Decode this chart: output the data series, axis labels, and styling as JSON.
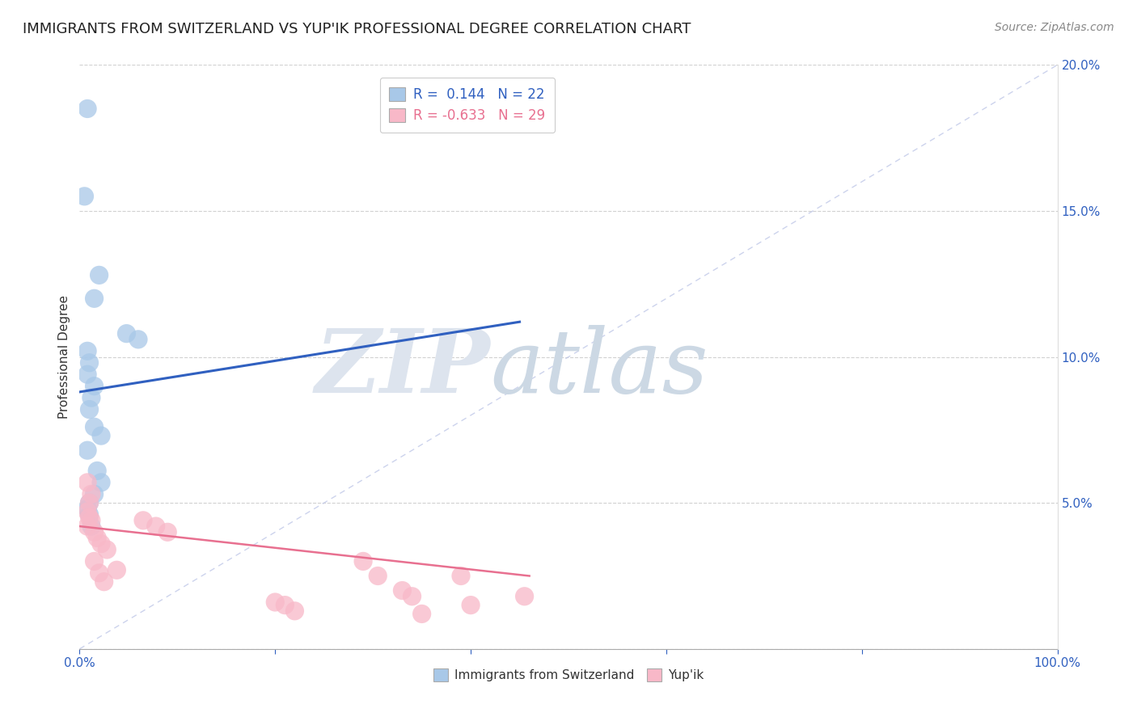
{
  "title": "IMMIGRANTS FROM SWITZERLAND VS YUP'IK PROFESSIONAL DEGREE CORRELATION CHART",
  "source": "Source: ZipAtlas.com",
  "ylabel": "Professional Degree",
  "xlim": [
    0,
    1.0
  ],
  "ylim": [
    0,
    0.2
  ],
  "legend_r1": "R =  0.144",
  "legend_n1": "N = 22",
  "legend_r2": "R = -0.633",
  "legend_n2": "N = 29",
  "swiss_color": "#a8c8e8",
  "yupik_color": "#f8b8c8",
  "swiss_line_color": "#3060c0",
  "yupik_line_color": "#e87090",
  "dashed_line_color": "#c0c8e8",
  "swiss_points": [
    [
      0.008,
      0.185
    ],
    [
      0.005,
      0.155
    ],
    [
      0.02,
      0.128
    ],
    [
      0.015,
      0.12
    ],
    [
      0.048,
      0.108
    ],
    [
      0.008,
      0.102
    ],
    [
      0.01,
      0.098
    ],
    [
      0.008,
      0.094
    ],
    [
      0.015,
      0.09
    ],
    [
      0.012,
      0.086
    ],
    [
      0.01,
      0.082
    ],
    [
      0.015,
      0.076
    ],
    [
      0.022,
      0.073
    ],
    [
      0.06,
      0.106
    ],
    [
      0.008,
      0.068
    ],
    [
      0.018,
      0.061
    ],
    [
      0.022,
      0.057
    ],
    [
      0.015,
      0.053
    ],
    [
      0.01,
      0.05
    ],
    [
      0.008,
      0.048
    ],
    [
      0.01,
      0.046
    ],
    [
      0.012,
      0.042
    ]
  ],
  "yupik_points": [
    [
      0.008,
      0.057
    ],
    [
      0.012,
      0.053
    ],
    [
      0.01,
      0.05
    ],
    [
      0.008,
      0.047
    ],
    [
      0.01,
      0.045
    ],
    [
      0.012,
      0.044
    ],
    [
      0.008,
      0.042
    ],
    [
      0.015,
      0.04
    ],
    [
      0.018,
      0.038
    ],
    [
      0.022,
      0.036
    ],
    [
      0.028,
      0.034
    ],
    [
      0.015,
      0.03
    ],
    [
      0.038,
      0.027
    ],
    [
      0.02,
      0.026
    ],
    [
      0.025,
      0.023
    ],
    [
      0.065,
      0.044
    ],
    [
      0.078,
      0.042
    ],
    [
      0.09,
      0.04
    ],
    [
      0.2,
      0.016
    ],
    [
      0.21,
      0.015
    ],
    [
      0.22,
      0.013
    ],
    [
      0.29,
      0.03
    ],
    [
      0.305,
      0.025
    ],
    [
      0.33,
      0.02
    ],
    [
      0.34,
      0.018
    ],
    [
      0.35,
      0.012
    ],
    [
      0.39,
      0.025
    ],
    [
      0.4,
      0.015
    ],
    [
      0.455,
      0.018
    ]
  ],
  "swiss_trendline": [
    0.0,
    0.088,
    0.45,
    0.112
  ],
  "yupik_trendline": [
    0.0,
    0.042,
    0.46,
    0.025
  ],
  "dashed_trendline": [
    0.0,
    0.0,
    1.0,
    0.2
  ]
}
